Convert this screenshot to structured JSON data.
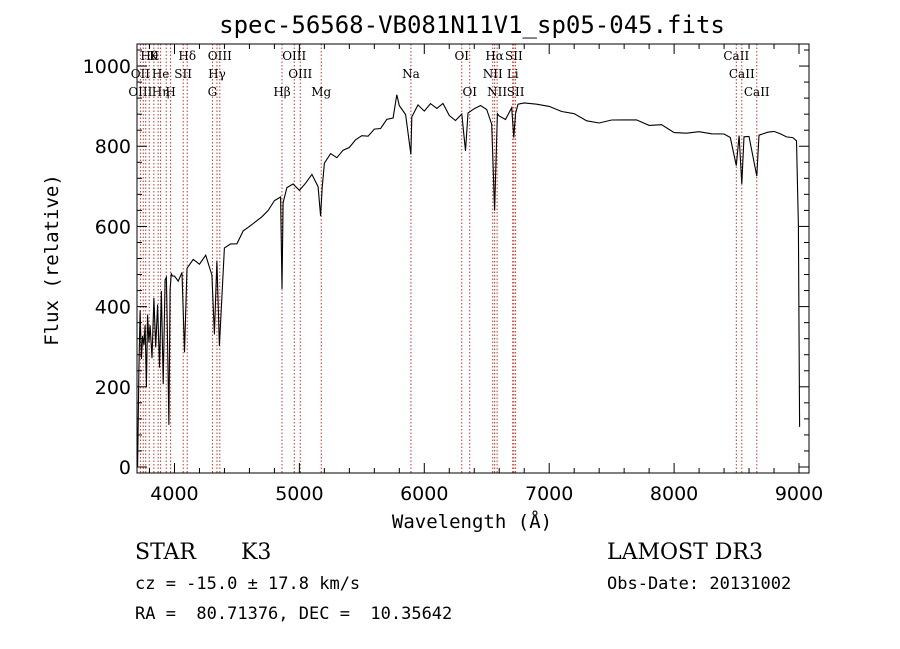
{
  "chart_data": {
    "type": "line",
    "title": "spec-56568-VB081N11V1_sp05-045.fits",
    "xlabel": "Wavelength (Å)",
    "ylabel": "Flux (relative)",
    "xlim": [
      3700,
      9080
    ],
    "ylim": [
      -15,
      1055
    ],
    "xticks": [
      4000,
      5000,
      6000,
      7000,
      8000,
      9000
    ],
    "yticks": [
      0,
      200,
      400,
      600,
      800,
      1000
    ],
    "line_color": "#000000",
    "marker_color": "#c0392b",
    "spectrum": {
      "x": [
        3705,
        3715,
        3725,
        3735,
        3745,
        3755,
        3765,
        3775,
        3785,
        3795,
        3805,
        3820,
        3835,
        3850,
        3865,
        3880,
        3895,
        3910,
        3925,
        3935,
        3945,
        3955,
        3965,
        3975,
        3985,
        4000,
        4030,
        4060,
        4080,
        4100,
        4150,
        4200,
        4250,
        4300,
        4320,
        4340,
        4360,
        4400,
        4450,
        4500,
        4550,
        4600,
        4650,
        4700,
        4750,
        4800,
        4850,
        4861,
        4870,
        4900,
        4950,
        5000,
        5050,
        5100,
        5150,
        5170,
        5183,
        5200,
        5250,
        5300,
        5350,
        5400,
        5450,
        5500,
        5550,
        5600,
        5650,
        5700,
        5750,
        5780,
        5800,
        5850,
        5893,
        5900,
        5950,
        6000,
        6050,
        6100,
        6150,
        6200,
        6250,
        6300,
        6330,
        6350,
        6400,
        6450,
        6500,
        6540,
        6563,
        6585,
        6600,
        6650,
        6700,
        6717,
        6731,
        6750,
        6800,
        6900,
        7000,
        7100,
        7200,
        7300,
        7400,
        7500,
        7600,
        7700,
        7800,
        7900,
        8000,
        8100,
        8200,
        8300,
        8400,
        8450,
        8498,
        8520,
        8542,
        8560,
        8600,
        8662,
        8680,
        8750,
        8800,
        8850,
        8900,
        8950,
        8980,
        8995,
        9005
      ],
      "y": [
        0,
        240,
        390,
        270,
        330,
        300,
        350,
        200,
        380,
        310,
        360,
        270,
        420,
        300,
        400,
        250,
        440,
        210,
        460,
        470,
        300,
        100,
        450,
        480,
        470,
        480,
        460,
        490,
        280,
        500,
        520,
        505,
        530,
        480,
        330,
        520,
        300,
        540,
        560,
        560,
        585,
        595,
        610,
        630,
        640,
        660,
        670,
        450,
        660,
        690,
        700,
        690,
        710,
        730,
        705,
        620,
        700,
        760,
        780,
        770,
        790,
        800,
        810,
        820,
        830,
        840,
        850,
        860,
        870,
        930,
        900,
        880,
        780,
        880,
        900,
        890,
        910,
        890,
        900,
        880,
        870,
        880,
        790,
        880,
        890,
        900,
        890,
        860,
        640,
        880,
        880,
        870,
        890,
        820,
        880,
        900,
        910,
        900,
        900,
        890,
        880,
        870,
        860,
        860,
        870,
        860,
        850,
        850,
        840,
        830,
        830,
        830,
        830,
        820,
        750,
        820,
        700,
        830,
        820,
        720,
        830,
        840,
        830,
        830,
        820,
        820,
        810,
        600,
        100
      ]
    },
    "lines": [
      {
        "label": "Hθ",
        "wavelength": 3798,
        "row": 0
      },
      {
        "label": "K",
        "wavelength": 3834,
        "row": 0
      },
      {
        "label": "Hδ",
        "wavelength": 4102,
        "row": 0
      },
      {
        "label": "OIII",
        "wavelength": 4363,
        "row": 0
      },
      {
        "label": "OIII",
        "wavelength": 4959,
        "row": 0
      },
      {
        "label": "OI",
        "wavelength": 6300,
        "row": 0
      },
      {
        "label": "Hα",
        "wavelength": 6563,
        "row": 0
      },
      {
        "label": "SII",
        "wavelength": 6717,
        "row": 0
      },
      {
        "label": "CaII",
        "wavelength": 8498,
        "row": 0
      },
      {
        "label": "OII",
        "wavelength": 3727,
        "row": 1
      },
      {
        "label": "He",
        "wavelength": 3889,
        "row": 1
      },
      {
        "label": "SII",
        "wavelength": 4069,
        "row": 1
      },
      {
        "label": "Hγ",
        "wavelength": 4340,
        "row": 1
      },
      {
        "label": "OIII",
        "wavelength": 5007,
        "row": 1
      },
      {
        "label": "Na",
        "wavelength": 5893,
        "row": 1
      },
      {
        "label": "NII",
        "wavelength": 6548,
        "row": 1
      },
      {
        "label": "Li",
        "wavelength": 6708,
        "row": 1
      },
      {
        "label": "CaII",
        "wavelength": 8542,
        "row": 1
      },
      {
        "label": "OIII",
        "wavelength": 3727,
        "row": 2
      },
      {
        "label": "Hη",
        "wavelength": 3889,
        "row": 2
      },
      {
        "label": "H",
        "wavelength": 3969,
        "row": 2
      },
      {
        "label": "G",
        "wavelength": 4304,
        "row": 2
      },
      {
        "label": "Hβ",
        "wavelength": 4861,
        "row": 2
      },
      {
        "label": "Mg",
        "wavelength": 5175,
        "row": 2
      },
      {
        "label": "OI",
        "wavelength": 6364,
        "row": 2
      },
      {
        "label": "NII",
        "wavelength": 6583,
        "row": 2
      },
      {
        "label": "SII",
        "wavelength": 6731,
        "row": 2
      },
      {
        "label": "CaII",
        "wavelength": 8662,
        "row": 2
      }
    ],
    "marker_wavelengths": [
      3727,
      3750,
      3770,
      3798,
      3835,
      3869,
      3889,
      3934,
      3969,
      4070,
      4102,
      4304,
      4340,
      4363,
      4861,
      4959,
      5007,
      5175,
      5893,
      6300,
      6364,
      6548,
      6563,
      6583,
      6708,
      6717,
      6731,
      8498,
      8542,
      8662
    ]
  },
  "info": {
    "object_class": "STAR",
    "subclass": "K3",
    "survey": "LAMOST DR3",
    "redshift": "cz = -15.0 ± 17.8 km/s",
    "obs_date": "Obs-Date: 20131002",
    "coords": "RA =  80.71376, DEC =  10.35642"
  }
}
